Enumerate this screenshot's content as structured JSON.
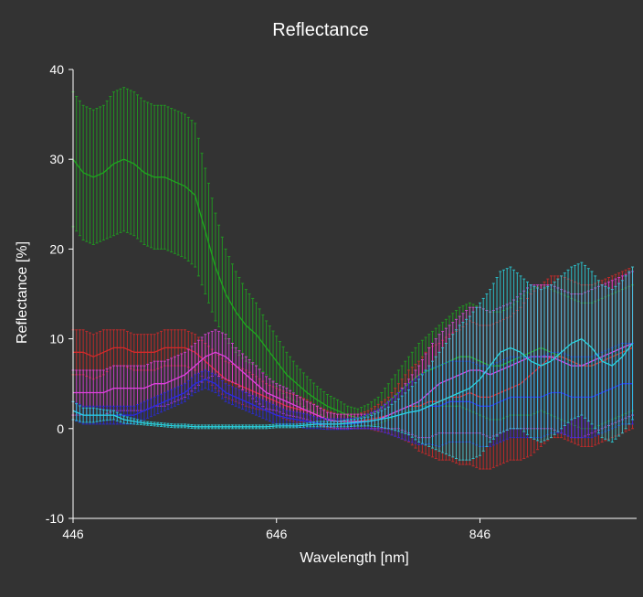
{
  "chart_data": {
    "type": "line",
    "title": "Reflectance",
    "xlabel": "Wavelength [nm]",
    "ylabel": "Reflectance [%]",
    "xlim": [
      446,
      1000
    ],
    "ylim": [
      -10,
      40
    ],
    "xticks": [
      446,
      646,
      846
    ],
    "yticks": [
      -10,
      0,
      10,
      20,
      30,
      40
    ],
    "x": [
      446,
      456,
      466,
      476,
      486,
      496,
      506,
      516,
      526,
      536,
      546,
      556,
      566,
      576,
      586,
      596,
      606,
      616,
      626,
      636,
      646,
      656,
      666,
      676,
      686,
      696,
      706,
      716,
      726,
      736,
      746,
      756,
      766,
      776,
      786,
      796,
      806,
      816,
      826,
      836,
      846,
      856,
      866,
      876,
      886,
      896,
      906,
      916,
      926,
      936,
      946,
      956,
      966,
      976,
      986,
      996
    ],
    "series": [
      {
        "color": "#1fa51f",
        "values": [
          30,
          28.5,
          28,
          28.5,
          29.5,
          30,
          29.5,
          28.5,
          28,
          28,
          27.5,
          27,
          26,
          22,
          18,
          15,
          13,
          11.5,
          10.5,
          9,
          7.5,
          6,
          5,
          4,
          3.2,
          2.5,
          2,
          1.5,
          1.2,
          1.5,
          2,
          3,
          4,
          5,
          6,
          6.5,
          7,
          7.5,
          8,
          8,
          7.5,
          7,
          7,
          7.5,
          8,
          8.5,
          9,
          8.5,
          8,
          7.5,
          7,
          7,
          7.5,
          8,
          8.5,
          9
        ],
        "errors": [
          7.5,
          7.5,
          7.5,
          7.5,
          8,
          8,
          8,
          8,
          8,
          8,
          8,
          8,
          8,
          7,
          6,
          5,
          4.5,
          4,
          3.5,
          3,
          2.8,
          2.5,
          2,
          1.8,
          1.5,
          1.3,
          1.2,
          1,
          1,
          1.2,
          1.5,
          2,
          2.5,
          3,
          3.5,
          4,
          4.5,
          5,
          5.5,
          6,
          6,
          6,
          6,
          6,
          6.5,
          7,
          7,
          7,
          7,
          7,
          7,
          7,
          7,
          7,
          7,
          7
        ]
      },
      {
        "color": "#d42a2a",
        "values": [
          8.5,
          8.5,
          8,
          8.5,
          9,
          9,
          8.5,
          8.5,
          8.5,
          9,
          9,
          9,
          8.5,
          7.5,
          6.5,
          5.5,
          5,
          4.5,
          4,
          3.5,
          3,
          2.5,
          2.2,
          2,
          1.5,
          1,
          0.8,
          0.8,
          0.8,
          1,
          1.2,
          1.5,
          2,
          2.5,
          2.5,
          3,
          3,
          3.5,
          3.5,
          4,
          3.5,
          3.5,
          4,
          4.5,
          5,
          6,
          7,
          8,
          8,
          7.5,
          7,
          7,
          7.5,
          8,
          8.5,
          9
        ],
        "errors": [
          2.5,
          2.5,
          2.5,
          2.5,
          2,
          2,
          2,
          2,
          2,
          2,
          2,
          2,
          2,
          2,
          2,
          2,
          2,
          2,
          1.8,
          1.5,
          1.5,
          1.5,
          1.5,
          1.2,
          1,
          1,
          0.8,
          0.8,
          0.8,
          1,
          1.5,
          2,
          3,
          4,
          5,
          6,
          6.5,
          7,
          7.5,
          8,
          8,
          8,
          8,
          8,
          8.5,
          9,
          9,
          9,
          9,
          9,
          9,
          9,
          9,
          9,
          9,
          9
        ]
      },
      {
        "color": "#e040e0",
        "values": [
          4,
          4,
          4,
          4,
          4.5,
          4.5,
          4.5,
          4.5,
          5,
          5,
          5.5,
          6,
          7,
          8,
          8.5,
          8,
          7,
          6,
          5,
          4,
          3.5,
          3,
          2.5,
          2,
          1.5,
          1,
          0.8,
          0.8,
          0.8,
          0.8,
          1,
          1.5,
          2,
          2.5,
          3,
          4,
          5,
          5.5,
          6,
          6.5,
          6.5,
          6,
          6.5,
          7,
          7.5,
          8,
          8,
          8,
          7.5,
          7,
          7,
          7.5,
          8,
          8.5,
          9,
          9.5
        ],
        "errors": [
          2.5,
          2.5,
          2.5,
          2.5,
          2.5,
          2.5,
          2.5,
          2.5,
          2.5,
          2.5,
          2.5,
          2.5,
          2.5,
          2.5,
          2.5,
          2.5,
          2,
          2,
          2,
          1.8,
          1.5,
          1.5,
          1.2,
          1,
          1,
          0.8,
          0.8,
          0.8,
          0.8,
          0.8,
          1,
          1.5,
          2,
          3,
          4,
          5,
          5.5,
          6,
          6.5,
          7,
          7,
          7,
          7,
          7,
          7.5,
          8,
          8,
          8,
          8,
          8,
          8,
          8,
          8,
          8,
          8,
          8
        ]
      },
      {
        "color": "#2a2ae0",
        "values": [
          2,
          1.5,
          1.5,
          1.5,
          1.5,
          1.5,
          1.5,
          2,
          2.5,
          3,
          3.5,
          4,
          5,
          5.5,
          5,
          4,
          3.5,
          3,
          2.5,
          2,
          1.5,
          1.2,
          1,
          0.8,
          0.6,
          0.5,
          0.5,
          0.5,
          0.6,
          0.8,
          1,
          1.2,
          1.5,
          1.8,
          2,
          2.5,
          2.5,
          3,
          3,
          3,
          2.5,
          2.5,
          3,
          3.5,
          3.5,
          3.5,
          3.5,
          4,
          4,
          3.5,
          3.5,
          3.5,
          4,
          4.5,
          5,
          5
        ],
        "errors": [
          1,
          1,
          1,
          1,
          1,
          1,
          1,
          1,
          1,
          1,
          1,
          1,
          1,
          1,
          1,
          1,
          1,
          1,
          1,
          1,
          1,
          0.8,
          0.8,
          0.8,
          0.6,
          0.6,
          0.6,
          0.6,
          0.6,
          0.8,
          1.2,
          1.8,
          2.5,
          3.2,
          3.8,
          4.2,
          4.5,
          4.5,
          4.5,
          4.5,
          4.5,
          4.5,
          4.5,
          4.5,
          4.5,
          4.5,
          4.5,
          4.5,
          4.5,
          4.5,
          4.5,
          4.5,
          4.5,
          4.5,
          4.5,
          4.5
        ]
      },
      {
        "color": "#2ad4e0",
        "values": [
          2,
          1.5,
          1.5,
          1.5,
          1.5,
          1,
          0.8,
          0.6,
          0.5,
          0.4,
          0.3,
          0.3,
          0.2,
          0.2,
          0.2,
          0.2,
          0.2,
          0.2,
          0.2,
          0.2,
          0.3,
          0.3,
          0.3,
          0.4,
          0.5,
          0.5,
          0.5,
          0.6,
          0.7,
          0.8,
          1,
          1.2,
          1.5,
          1.8,
          2,
          2.5,
          3,
          3.5,
          4,
          4.5,
          5.5,
          7,
          8.5,
          9,
          8.5,
          7.5,
          7,
          7.5,
          8.5,
          9.5,
          10,
          9,
          7.5,
          7,
          8,
          9.5
        ],
        "errors": [
          1,
          0.8,
          0.8,
          0.6,
          0.5,
          0.4,
          0.3,
          0.2,
          0.2,
          0.2,
          0.2,
          0.2,
          0.2,
          0.2,
          0.2,
          0.2,
          0.2,
          0.2,
          0.2,
          0.2,
          0.2,
          0.2,
          0.2,
          0.2,
          0.3,
          0.3,
          0.3,
          0.4,
          0.4,
          0.5,
          0.8,
          1.2,
          1.8,
          2.5,
          3.5,
          4.5,
          5.5,
          6.5,
          7.5,
          8,
          8.5,
          8.5,
          9,
          9,
          8.5,
          8.5,
          8.5,
          8.5,
          8.5,
          8.5,
          8.5,
          8.5,
          8.5,
          8.5,
          8.5,
          8.5
        ]
      }
    ]
  }
}
